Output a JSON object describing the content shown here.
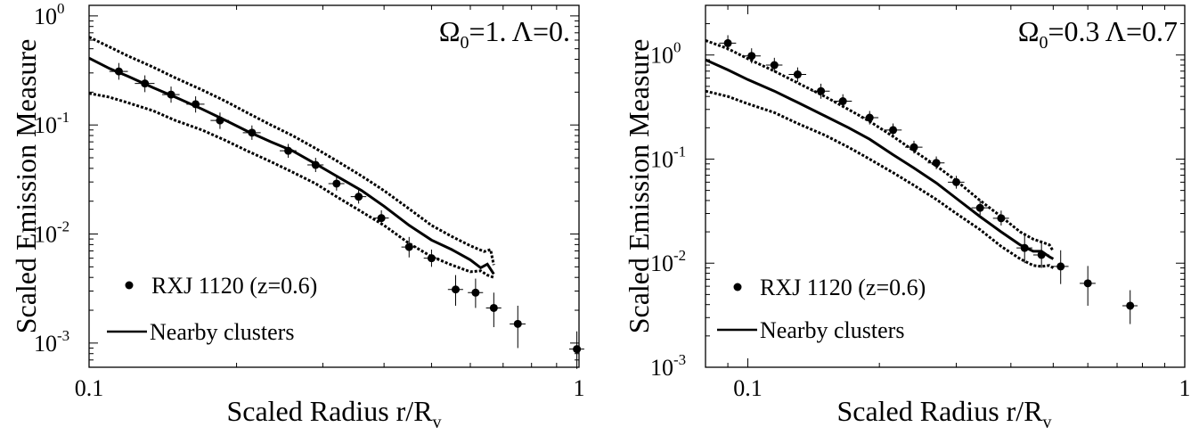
{
  "chart_data": [
    {
      "type": "scatter",
      "annotation": "Ω0=1. Λ=0.",
      "xlabel": "Scaled Radius r/Rv",
      "ylabel": "Scaled Emission Measure",
      "xscale": "log",
      "yscale": "log",
      "xlim": [
        0.1,
        1
      ],
      "ylim": [
        0.0006,
        1.25
      ],
      "xticks": [
        "0.1",
        "1"
      ],
      "yticks": [
        {
          "base": "10",
          "exp": "0",
          "value": 1
        },
        {
          "base": "10",
          "exp": "-1",
          "value": 0.1
        },
        {
          "base": "10",
          "exp": "-2",
          "value": 0.01
        },
        {
          "base": "10",
          "exp": "-3",
          "value": 0.001
        }
      ],
      "legend": {
        "placement": "bottom-left",
        "points_label": "RXJ 1120 (z=0.6)",
        "line_label": "Nearby clusters"
      },
      "series": [
        {
          "name": "RXJ 1120 (z=0.6)",
          "kind": "points",
          "x": [
            0.115,
            0.13,
            0.147,
            0.165,
            0.185,
            0.215,
            0.255,
            0.29,
            0.32,
            0.355,
            0.395,
            0.45,
            0.5,
            0.56,
            0.615,
            0.67,
            0.75,
            0.99
          ],
          "y": [
            0.31,
            0.24,
            0.19,
            0.155,
            0.11,
            0.085,
            0.058,
            0.043,
            0.029,
            0.022,
            0.014,
            0.0076,
            0.006,
            0.0031,
            0.0029,
            0.0021,
            0.0015,
            0.00088
          ],
          "xerr": [
            0.005,
            0.006,
            0.006,
            0.007,
            0.008,
            0.009,
            0.01,
            0.011,
            0.012,
            0.013,
            0.014,
            0.016,
            0.018,
            0.02,
            0.022,
            0.024,
            0.028,
            0.035
          ],
          "yerr": [
            [
              0.05,
              0.04,
              0.03,
              0.025,
              0.018,
              0.012,
              0.008,
              0.006,
              0.004,
              0.003,
              0.002,
              0.0015,
              0.001,
              0.0009,
              0.0008,
              0.0007,
              0.0006,
              0.0003
            ],
            [
              0.06,
              0.045,
              0.035,
              0.028,
              0.02,
              0.014,
              0.009,
              0.007,
              0.005,
              0.004,
              0.0025,
              0.0018,
              0.0012,
              0.0011,
              0.001,
              0.0008,
              0.0007,
              0.0004
            ]
          ]
        },
        {
          "name": "Nearby clusters",
          "kind": "line",
          "style": "solid",
          "x": [
            0.1,
            0.11,
            0.12,
            0.135,
            0.15,
            0.17,
            0.19,
            0.21,
            0.235,
            0.26,
            0.29,
            0.32,
            0.36,
            0.4,
            0.45,
            0.5,
            0.55,
            0.6,
            0.63,
            0.65,
            0.67
          ],
          "y": [
            0.41,
            0.33,
            0.28,
            0.22,
            0.18,
            0.14,
            0.11,
            0.088,
            0.07,
            0.058,
            0.044,
            0.034,
            0.025,
            0.018,
            0.012,
            0.0088,
            0.0072,
            0.0058,
            0.0049,
            0.0053,
            0.0043
          ]
        },
        {
          "kind": "line",
          "style": "dotted",
          "x": [
            0.1,
            0.11,
            0.12,
            0.135,
            0.15,
            0.17,
            0.19,
            0.21,
            0.235,
            0.26,
            0.29,
            0.32,
            0.36,
            0.4,
            0.45,
            0.5,
            0.55,
            0.6,
            0.64,
            0.66,
            0.67
          ],
          "y": [
            0.64,
            0.52,
            0.43,
            0.34,
            0.27,
            0.21,
            0.165,
            0.13,
            0.1,
            0.08,
            0.061,
            0.047,
            0.034,
            0.025,
            0.017,
            0.012,
            0.0095,
            0.0078,
            0.0069,
            0.0072,
            0.0052
          ]
        },
        {
          "kind": "line",
          "style": "dotted",
          "x": [
            0.1,
            0.11,
            0.12,
            0.135,
            0.15,
            0.17,
            0.19,
            0.21,
            0.235,
            0.26,
            0.29,
            0.32,
            0.36,
            0.4,
            0.45,
            0.5,
            0.55,
            0.6,
            0.63,
            0.65,
            0.67
          ],
          "y": [
            0.195,
            0.18,
            0.16,
            0.135,
            0.11,
            0.09,
            0.072,
            0.058,
            0.046,
            0.037,
            0.029,
            0.022,
            0.016,
            0.012,
            0.0082,
            0.0062,
            0.0052,
            0.0045,
            0.0046,
            0.0042,
            0.004
          ]
        }
      ]
    },
    {
      "type": "scatter",
      "annotation": "Ω0=0.3 Λ=0.7",
      "xlabel": "Scaled Radius r/Rv",
      "ylabel": "Scaled Emission Measure",
      "xscale": "log",
      "yscale": "log",
      "xlim": [
        0.08,
        1
      ],
      "ylim": [
        0.001,
        3.0
      ],
      "xticks": [
        "0.1",
        "1"
      ],
      "yticks": [
        {
          "base": "10",
          "exp": "0",
          "value": 1
        },
        {
          "base": "10",
          "exp": "-1",
          "value": 0.1
        },
        {
          "base": "10",
          "exp": "-2",
          "value": 0.01
        },
        {
          "base": "10",
          "exp": "-3",
          "value": 0.001
        }
      ],
      "legend": {
        "placement": "bottom-left",
        "points_label": "RXJ 1120 (z=0.6)",
        "line_label": "Nearby clusters"
      },
      "series": [
        {
          "name": "RXJ 1120 (z=0.6)",
          "kind": "points",
          "x": [
            0.09,
            0.102,
            0.115,
            0.13,
            0.147,
            0.165,
            0.19,
            0.215,
            0.24,
            0.27,
            0.3,
            0.34,
            0.38,
            0.43,
            0.47,
            0.52,
            0.6,
            0.75
          ],
          "y": [
            1.3,
            0.98,
            0.8,
            0.65,
            0.45,
            0.36,
            0.25,
            0.19,
            0.13,
            0.092,
            0.06,
            0.034,
            0.027,
            0.014,
            0.012,
            0.0093,
            0.0064,
            0.0039
          ],
          "xerr": [
            0.004,
            0.005,
            0.005,
            0.006,
            0.007,
            0.008,
            0.009,
            0.01,
            0.011,
            0.012,
            0.013,
            0.015,
            0.016,
            0.018,
            0.02,
            0.022,
            0.025,
            0.03
          ],
          "yerr": [
            [
              0.2,
              0.15,
              0.12,
              0.1,
              0.07,
              0.05,
              0.035,
              0.025,
              0.017,
              0.012,
              0.008,
              0.005,
              0.004,
              0.004,
              0.003,
              0.003,
              0.0025,
              0.0013
            ],
            [
              0.25,
              0.18,
              0.14,
              0.11,
              0.08,
              0.06,
              0.04,
              0.03,
              0.02,
              0.014,
              0.009,
              0.006,
              0.005,
              0.005,
              0.004,
              0.004,
              0.003,
              0.0016
            ]
          ]
        },
        {
          "name": "Nearby clusters",
          "kind": "line",
          "style": "solid",
          "x": [
            0.08,
            0.09,
            0.1,
            0.115,
            0.13,
            0.15,
            0.17,
            0.19,
            0.215,
            0.24,
            0.27,
            0.3,
            0.34,
            0.38,
            0.42,
            0.45,
            0.47,
            0.49,
            0.5
          ],
          "y": [
            0.9,
            0.72,
            0.58,
            0.45,
            0.35,
            0.26,
            0.2,
            0.155,
            0.11,
            0.082,
            0.059,
            0.042,
            0.028,
            0.02,
            0.015,
            0.013,
            0.013,
            0.0115,
            0.011
          ]
        },
        {
          "kind": "line",
          "style": "dotted",
          "x": [
            0.08,
            0.09,
            0.1,
            0.115,
            0.13,
            0.15,
            0.17,
            0.19,
            0.215,
            0.24,
            0.27,
            0.3,
            0.34,
            0.38,
            0.42,
            0.45,
            0.47,
            0.49,
            0.5
          ],
          "y": [
            1.38,
            1.15,
            0.92,
            0.7,
            0.54,
            0.4,
            0.3,
            0.23,
            0.165,
            0.12,
            0.086,
            0.062,
            0.04,
            0.028,
            0.02,
            0.017,
            0.016,
            0.015,
            0.013
          ]
        },
        {
          "kind": "line",
          "style": "dotted",
          "x": [
            0.08,
            0.09,
            0.1,
            0.115,
            0.13,
            0.15,
            0.17,
            0.19,
            0.215,
            0.24,
            0.27,
            0.3,
            0.34,
            0.38,
            0.42,
            0.45,
            0.47,
            0.49,
            0.5
          ],
          "y": [
            0.45,
            0.4,
            0.34,
            0.28,
            0.22,
            0.17,
            0.13,
            0.1,
            0.074,
            0.056,
            0.041,
            0.03,
            0.021,
            0.0145,
            0.011,
            0.0095,
            0.0093,
            0.0095,
            0.009
          ]
        }
      ]
    }
  ]
}
